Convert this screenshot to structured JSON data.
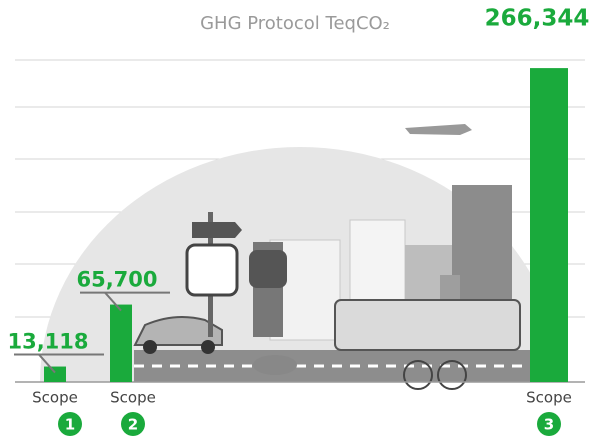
{
  "chart_data": {
    "type": "bar",
    "title": "GHG Protocol TeqCO₂",
    "categories": [
      "Scope",
      "Scope",
      "Scope"
    ],
    "badges": [
      "1",
      "2",
      "3"
    ],
    "values": [
      13118,
      65700,
      266344
    ],
    "value_labels": [
      "13,118",
      "65,700",
      "266,344"
    ],
    "color": "#1aaa3c",
    "ylim": [
      0,
      280000
    ]
  }
}
